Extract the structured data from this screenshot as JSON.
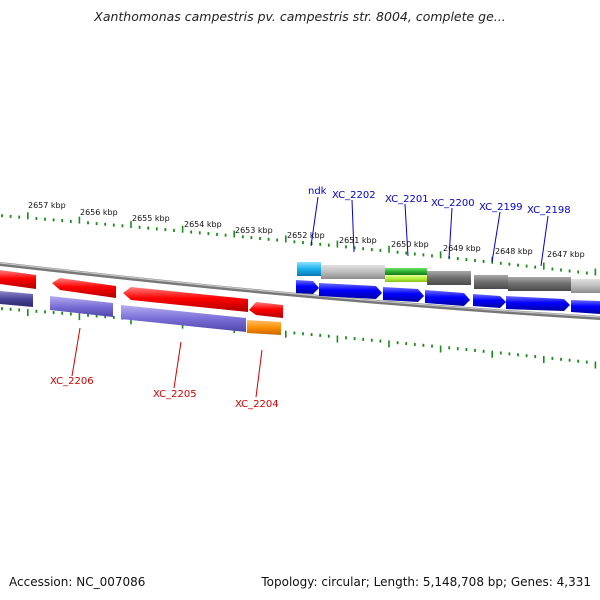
{
  "title": "Xanthomonas campestris pv. campestris str. 8004, complete ge...",
  "footer": {
    "accession_label": "Accession: NC_007086",
    "summary": "Topology: circular; Length: 5,148,708 bp; Genes: 4,331"
  },
  "colors": {
    "axis_tick": "#1a8a1a",
    "backbone": "#888888",
    "forward_label": "#0000cc",
    "reverse_label": "#cc0000"
  },
  "axis_ticks": [
    "2657 kbp",
    "2656 kbp",
    "2655 kbp",
    "2654 kbp",
    "2653 kbp",
    "2652 kbp",
    "2651 kbp",
    "2650 kbp",
    "2649 kbp",
    "2648 kbp",
    "2647 kbp"
  ],
  "genes_forward_labels": [
    "ndk",
    "XC_2202",
    "XC_2201",
    "XC_2200",
    "XC_2199",
    "XC_2198"
  ],
  "genes_reverse_labels": [
    "XC_2206",
    "XC_2205",
    "XC_2204"
  ]
}
